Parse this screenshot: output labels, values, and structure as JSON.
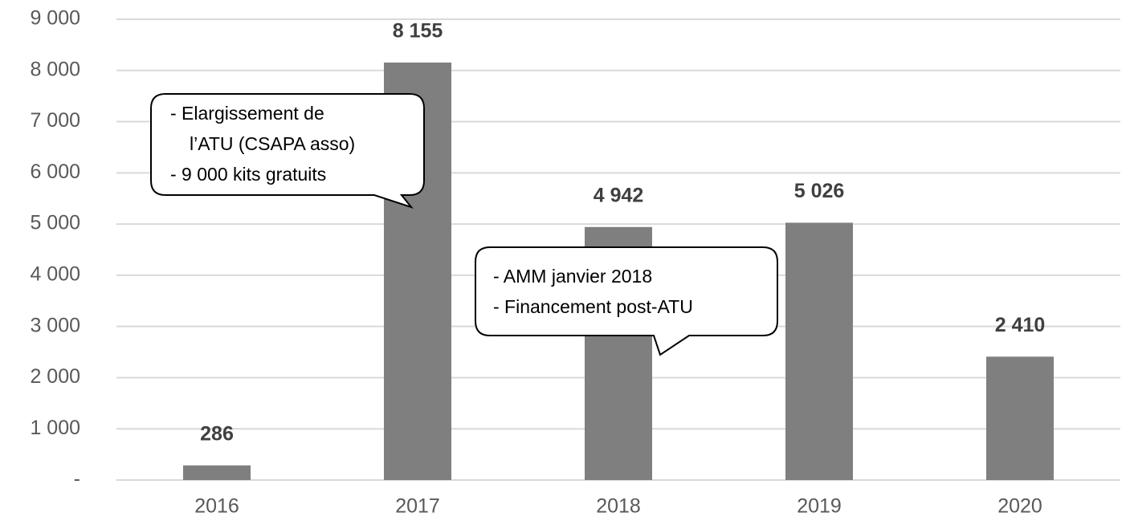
{
  "chart_data": {
    "type": "bar",
    "categories": [
      "2016",
      "2017",
      "2018",
      "2019",
      "2020"
    ],
    "values": [
      286,
      8155,
      4942,
      5026,
      2410
    ],
    "value_labels": [
      "286",
      "8 155",
      "4 942",
      "5 026",
      "2 410"
    ],
    "color": "#7f7f7f",
    "ylim": [
      0,
      9000
    ],
    "yticks": [
      {
        "value": 0,
        "label": "-"
      },
      {
        "value": 1000,
        "label": "1 000"
      },
      {
        "value": 2000,
        "label": "2 000"
      },
      {
        "value": 3000,
        "label": "3 000"
      },
      {
        "value": 4000,
        "label": "4 000"
      },
      {
        "value": 5000,
        "label": "5 000"
      },
      {
        "value": 6000,
        "label": "6 000"
      },
      {
        "value": 7000,
        "label": "7 000"
      },
      {
        "value": 8000,
        "label": "8 000"
      },
      {
        "value": 9000,
        "label": "9 000"
      }
    ],
    "grid": true,
    "annotations": [
      {
        "lines": [
          "- Elargissement de",
          "l’ATU (CSAPA asso)",
          "- 9 000 kits gratuits"
        ]
      },
      {
        "lines": [
          "- AMM janvier 2018",
          "- Financement post-ATU"
        ]
      }
    ]
  }
}
